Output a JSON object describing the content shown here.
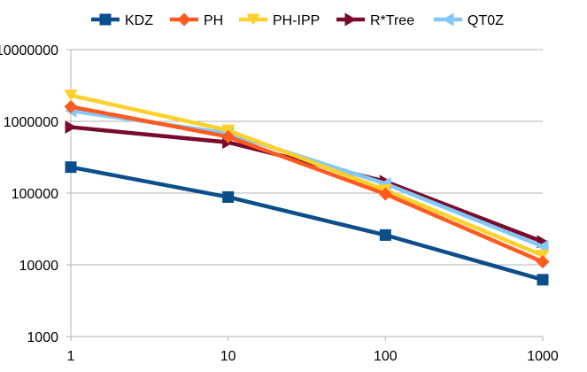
{
  "chart_data": {
    "type": "line",
    "title": "",
    "xlabel": "",
    "ylabel": "",
    "x_scale": "log",
    "y_scale": "log",
    "x": [
      1,
      10,
      100,
      1000
    ],
    "xticks": [
      "1",
      "10",
      "100",
      "1000"
    ],
    "ylim": [
      1000,
      10000000
    ],
    "yticks": [
      "1000",
      "10000",
      "100000",
      "1000000",
      "10000000"
    ],
    "grid": "horizontal",
    "legend_position": "top",
    "series": [
      {
        "name": "KDZ",
        "color": "#0b4f8a",
        "marker": "square",
        "values": [
          230000,
          88000,
          26000,
          6200
        ]
      },
      {
        "name": "PH",
        "color": "#ff5a1f",
        "marker": "diamond",
        "values": [
          1600000,
          610000,
          97000,
          11000
        ]
      },
      {
        "name": "PH-IPP",
        "color": "#ffd02a",
        "marker": "triangle-down",
        "values": [
          2300000,
          750000,
          110000,
          13500
        ]
      },
      {
        "name": "R*Tree",
        "color": "#7a0a2b",
        "marker": "triangle-right",
        "values": [
          830000,
          510000,
          145000,
          21000
        ]
      },
      {
        "name": "QT0Z",
        "color": "#83c8f6",
        "marker": "triangle-left",
        "values": [
          1400000,
          680000,
          135000,
          18000
        ]
      }
    ]
  }
}
